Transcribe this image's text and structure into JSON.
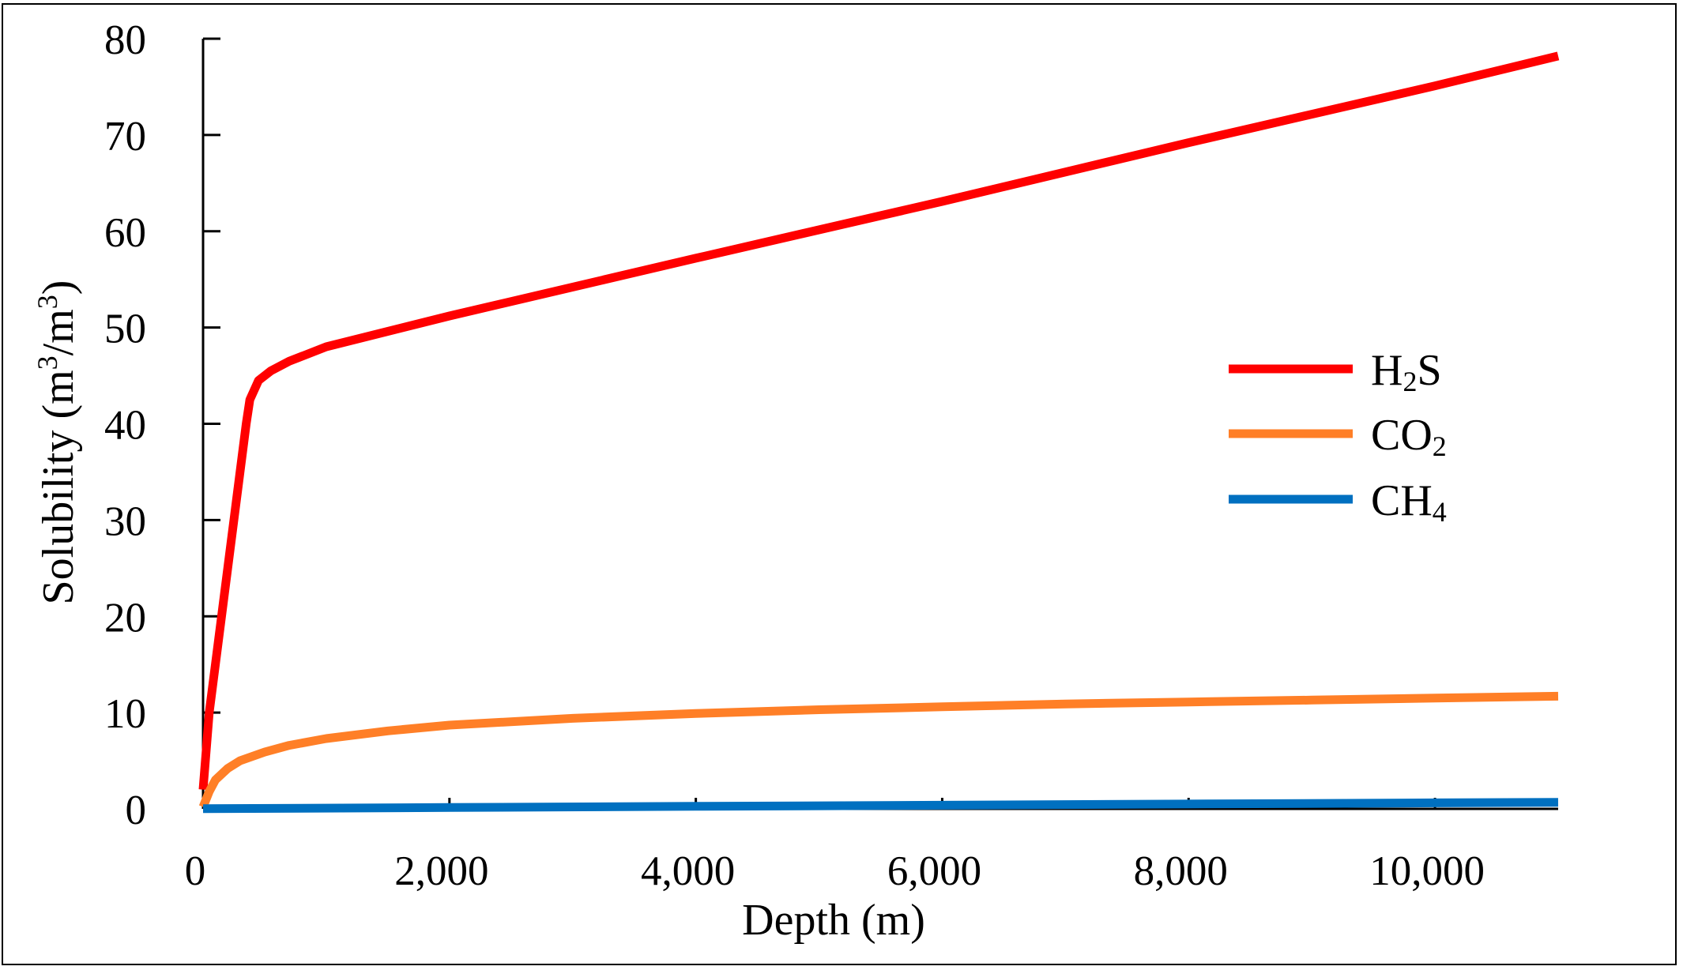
{
  "chart_data": {
    "type": "line",
    "title": "",
    "xlabel": "Depth (m)",
    "ylabel": "Solubility (m3/m3)",
    "ylabel_parts": {
      "prefix": "Solubility (m",
      "sup1": "3",
      "mid": "/m",
      "sup2": "3",
      "suffix": ")"
    },
    "xlim": [
      0,
      11000
    ],
    "ylim": [
      0,
      80
    ],
    "xticks": [
      0,
      2000,
      4000,
      6000,
      8000,
      10000
    ],
    "xtick_labels": [
      "0",
      "2,000",
      "4,000",
      "6,000",
      "8,000",
      "10,000"
    ],
    "yticks": [
      0,
      10,
      20,
      30,
      40,
      50,
      60,
      70,
      80
    ],
    "ytick_labels": [
      "0",
      "10",
      "20",
      "30",
      "40",
      "50",
      "60",
      "70",
      "80"
    ],
    "grid": false,
    "legend_position": "right",
    "series": [
      {
        "name": "H2S",
        "label_parts": [
          "H",
          "2",
          "S"
        ],
        "color": "#ff0000",
        "x": [
          0,
          50,
          100,
          150,
          200,
          250,
          300,
          350,
          380,
          450,
          550,
          700,
          1000,
          2000,
          4000,
          6000,
          8000,
          10000,
          11000
        ],
        "y": [
          2,
          10,
          15,
          20,
          25,
          30,
          35,
          40,
          42.5,
          44.5,
          45.5,
          46.5,
          48,
          51.2,
          57.2,
          63.1,
          69.2,
          75.1,
          78.2
        ]
      },
      {
        "name": "CO2",
        "label_parts": [
          "CO",
          "2",
          ""
        ],
        "color": "#ff7f27",
        "x": [
          0,
          50,
          100,
          200,
          300,
          500,
          700,
          1000,
          1500,
          2000,
          3000,
          4000,
          5000,
          6000,
          7000,
          8000,
          9000,
          10000,
          11000
        ],
        "y": [
          0.2,
          1.8,
          3.0,
          4.2,
          5.0,
          5.9,
          6.6,
          7.3,
          8.1,
          8.7,
          9.4,
          9.9,
          10.3,
          10.6,
          10.9,
          11.1,
          11.3,
          11.5,
          11.7
        ]
      },
      {
        "name": "CH4",
        "label_parts": [
          "CH",
          "4",
          ""
        ],
        "color": "#0070c0",
        "x": [
          0,
          2000,
          4000,
          6000,
          8000,
          10000,
          11000
        ],
        "y": [
          0.02,
          0.14,
          0.26,
          0.38,
          0.5,
          0.62,
          0.68
        ]
      }
    ]
  }
}
